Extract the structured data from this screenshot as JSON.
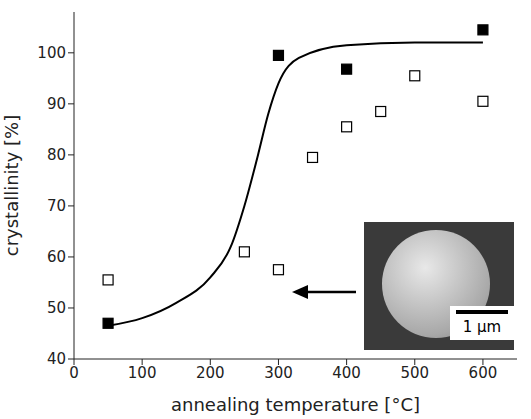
{
  "chart_data": {
    "type": "scatter",
    "x_label": "annealing temperature [°C]",
    "y_label": "crystallinity [%]",
    "xlim": [
      0,
      650
    ],
    "xticks": [
      0,
      100,
      200,
      300,
      400,
      500,
      600
    ],
    "ylim": [
      40,
      108
    ],
    "yticks": [
      40,
      50,
      60,
      70,
      80,
      90,
      100
    ],
    "grid": false,
    "inset_label": "1 µm",
    "series": [
      {
        "type": "scatter",
        "color": "#000000",
        "marker": "square",
        "x": [
          50,
          300,
          400,
          600
        ],
        "values": [
          47,
          99.5,
          96.8,
          104.5
        ]
      },
      {
        "type": "scatter",
        "color": "#000000",
        "marker": "open_square",
        "x": [
          50,
          250,
          300,
          350,
          400,
          450,
          500,
          600
        ],
        "values": [
          55.5,
          61,
          57.5,
          79.5,
          85.5,
          88.5,
          95.5,
          90.5
        ]
      },
      {
        "type": "line",
        "color": "#000000",
        "line_style": "solid",
        "x": [
          50,
          100,
          150,
          200,
          230,
          250,
          270,
          285,
          300,
          330,
          400,
          500,
          600
        ],
        "values": [
          46.5,
          48,
          51,
          56,
          62,
          70,
          80,
          88,
          94,
          99,
          101.5,
          102,
          102
        ]
      }
    ]
  }
}
